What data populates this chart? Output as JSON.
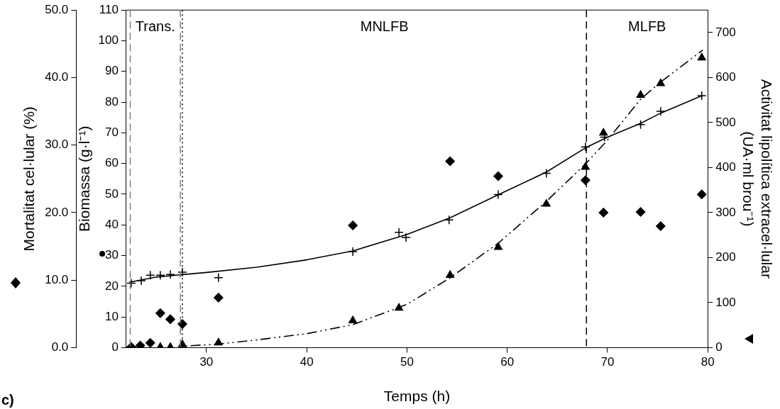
{
  "chart_data": {
    "type": "scatter",
    "xlabel": "Temps (h)",
    "ylabel": "Biomassa (g·l⁻¹)",
    "y2label": "Activitat lipolítica extracel·lular (UA·ml brou⁻¹)",
    "y3label": "Mortalitat cel·lular (%)",
    "xlim": [
      22,
      80
    ],
    "xticks": [
      30,
      40,
      50,
      60,
      70,
      80
    ],
    "ylim": [
      0,
      110
    ],
    "yticks": [
      0,
      10,
      20,
      30,
      40,
      50,
      60,
      70,
      80,
      90,
      100,
      110
    ],
    "y2lim": [
      0,
      750
    ],
    "y2ticks": [
      0,
      100,
      200,
      300,
      400,
      500,
      600,
      700
    ],
    "y3lim": [
      0,
      50
    ],
    "y3ticks": [
      {
        "value": 0,
        "label": "0.0"
      },
      {
        "value": 10,
        "label": "10.0"
      },
      {
        "value": 20,
        "label": "20.0"
      },
      {
        "value": 30,
        "label": "30.0"
      },
      {
        "value": 40,
        "label": "40.0"
      },
      {
        "value": 50,
        "label": "50.0"
      }
    ],
    "grid": false,
    "series": [
      {
        "marker": "cross",
        "color": "#000000",
        "x": [
          22.5,
          23.5,
          24.4,
          25.4,
          26.4,
          27.6,
          31.2,
          44.6,
          49.2,
          49.9,
          54.2,
          59.1,
          63.9,
          67.8,
          69.7,
          73.3,
          75.3,
          79.4
        ],
        "values": [
          21.0,
          21.8,
          23.6,
          23.6,
          23.8,
          24.6,
          22.8,
          31.3,
          37.6,
          35.9,
          41.6,
          49.9,
          56.8,
          65.4,
          68.6,
          72.7,
          77.0,
          82.1
        ]
      },
      {
        "marker": "diamond",
        "axis": "y3",
        "color": "#000000",
        "x": [
          22.5,
          23.4,
          24.4,
          25.4,
          26.4,
          27.6,
          31.2,
          44.6,
          54.3,
          59.1,
          67.8,
          69.6,
          73.3,
          75.3,
          79.4
        ],
        "values": [
          0.1,
          0.3,
          0.7,
          5.1,
          4.2,
          3.5,
          7.4,
          18.1,
          27.6,
          25.4,
          24.8,
          20.0,
          20.1,
          18.0,
          22.7
        ]
      },
      {
        "marker": "triangle",
        "axis": "y2",
        "color": "#000000",
        "x": [
          25.4,
          26.4,
          27.6,
          31.2,
          44.6,
          49.2,
          54.3,
          59.1,
          63.9,
          67.8,
          69.6,
          73.3,
          75.3,
          79.4
        ],
        "values": [
          1,
          1,
          7,
          11,
          60,
          88,
          161,
          223,
          319,
          401,
          477,
          561,
          587,
          644
        ]
      },
      {
        "type": "line",
        "marker": "none",
        "line_style": "solid",
        "color": "#000000",
        "x": [
          22.3,
          25,
          27.6,
          30,
          35,
          40,
          44.6,
          50,
          54.3,
          59.1,
          63.9,
          67.8,
          70,
          73.3,
          75.3,
          79.5
        ],
        "values": [
          21.3,
          23.0,
          23.8,
          24.5,
          26.2,
          28.6,
          31.5,
          36.9,
          42.3,
          49.8,
          57.2,
          65.1,
          68.6,
          73.1,
          76.4,
          82.2
        ]
      },
      {
        "type": "line",
        "marker": "none",
        "line_style": "dashed",
        "axis": "y2",
        "color": "#000000",
        "x": [
          27.6,
          31.2,
          35,
          40,
          44.6,
          50,
          54.3,
          59.1,
          63.9,
          67.8,
          70,
          73.3,
          75.3,
          79.5
        ],
        "values": [
          3,
          8,
          17,
          31,
          51,
          96,
          155,
          232,
          325,
          408,
          461,
          552,
          590,
          661
        ]
      }
    ],
    "ref_lines": [
      {
        "axis": "x",
        "value": 22.4,
        "color": "#808080",
        "line_style": "dashed"
      },
      {
        "axis": "x",
        "value": 27.4,
        "color": "#808080",
        "line_style": "dashed"
      },
      {
        "axis": "x",
        "value": 27.6,
        "color": "#000000",
        "line_style": "dotted"
      },
      {
        "axis": "x",
        "value": 67.9,
        "color": "#000000",
        "line_style": "dashed"
      }
    ],
    "annotations": [
      "Trans.",
      "MNLFB",
      "MLFB",
      "c)"
    ]
  }
}
